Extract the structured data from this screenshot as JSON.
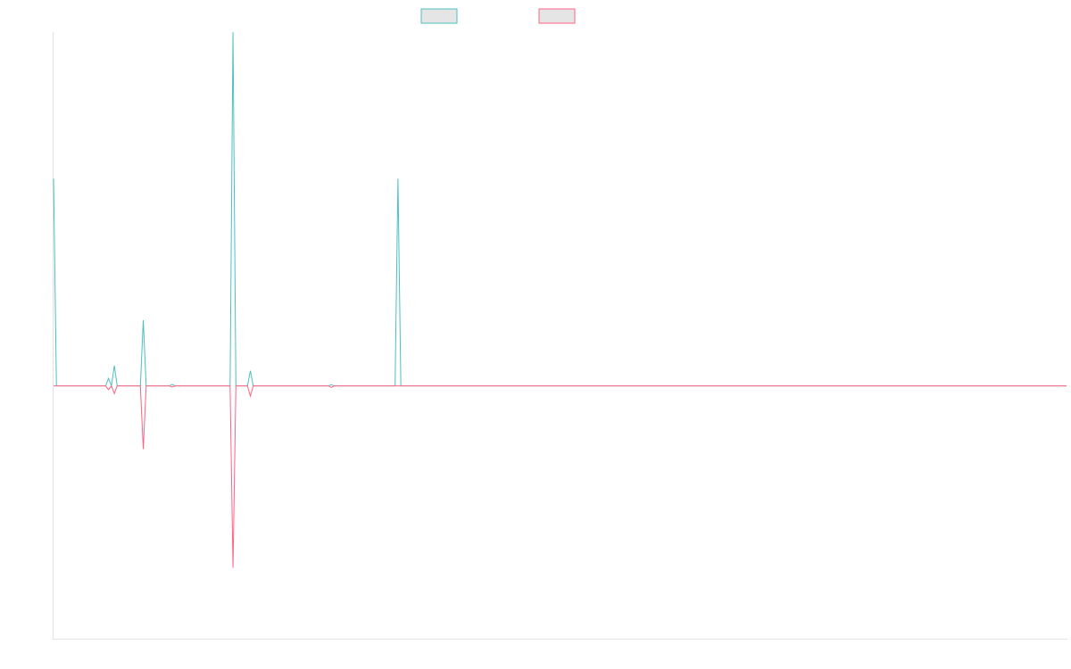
{
  "chart_data": {
    "type": "line",
    "title": "",
    "xlabel": "",
    "ylabel": "",
    "grid": false,
    "legend_placement": "top-center",
    "n_points": 351,
    "ylim": [
      -100,
      140
    ],
    "series": [
      {
        "color": "#4bc0c0",
        "legend_fill": "#e5e5e5",
        "points": [
          [
            0,
            82
          ],
          [
            1,
            0
          ],
          [
            18,
            0
          ],
          [
            19,
            3
          ],
          [
            20,
            0
          ],
          [
            21,
            8
          ],
          [
            22,
            0
          ],
          [
            30,
            0
          ],
          [
            31,
            26
          ],
          [
            32,
            0
          ],
          [
            40,
            0
          ],
          [
            41,
            0.6
          ],
          [
            42,
            0
          ],
          [
            61,
            0
          ],
          [
            62,
            140
          ],
          [
            63,
            0
          ],
          [
            67,
            0
          ],
          [
            68,
            6
          ],
          [
            69,
            0
          ],
          [
            95,
            0
          ],
          [
            96,
            0.5
          ],
          [
            97,
            0
          ],
          [
            118,
            0
          ],
          [
            119,
            82
          ],
          [
            120,
            0
          ],
          [
            350,
            0
          ]
        ]
      },
      {
        "color": "#ff6384",
        "legend_fill": "#e5e5e5",
        "points": [
          [
            0,
            0
          ],
          [
            18,
            0
          ],
          [
            19,
            -1.5
          ],
          [
            20,
            0
          ],
          [
            21,
            -3
          ],
          [
            22,
            0
          ],
          [
            30,
            0
          ],
          [
            31,
            -25
          ],
          [
            32,
            0
          ],
          [
            40,
            0
          ],
          [
            41,
            -0.4
          ],
          [
            42,
            0
          ],
          [
            61,
            0
          ],
          [
            62,
            -72
          ],
          [
            63,
            0
          ],
          [
            67,
            0
          ],
          [
            68,
            -4
          ],
          [
            69,
            0
          ],
          [
            95,
            0
          ],
          [
            96,
            -0.6
          ],
          [
            97,
            0
          ],
          [
            350,
            0
          ]
        ]
      }
    ]
  }
}
